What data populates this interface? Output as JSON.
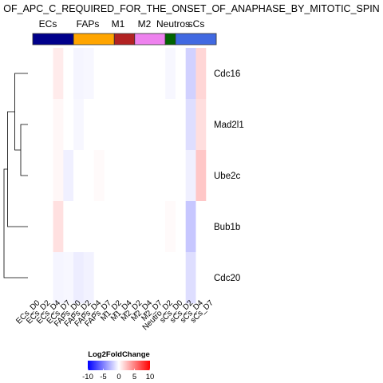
{
  "chart_data": {
    "type": "heatmap",
    "title": "OF_APC_C_REQUIRED_FOR_THE_ONSET_OF_ANAPHASE_BY_MITOTIC_SPIN",
    "rows": [
      "Cdc16",
      "Mad2l1",
      "Ube2c",
      "Bub1b",
      "Cdc20"
    ],
    "columns": [
      "ECs_D0",
      "ECs_D2",
      "ECs_D4",
      "ECs_D7",
      "FAPs_D0",
      "FAPs_D2",
      "FAPs_D4",
      "FAPs_D7",
      "M1_D2",
      "M1_D4",
      "M2_D2",
      "M2_D4",
      "M2_D7",
      "Neutro_D2",
      "sCs_D0",
      "sCs_D2",
      "sCs_D4",
      "sCs_D7"
    ],
    "column_groups": [
      {
        "name": "ECs",
        "color": "#00008b",
        "start": 0,
        "end": 3
      },
      {
        "name": "FAPs",
        "color": "#ffa500",
        "start": 4,
        "end": 7
      },
      {
        "name": "M1",
        "color": "#b22222",
        "start": 8,
        "end": 9
      },
      {
        "name": "M2",
        "color": "#ee82ee",
        "start": 10,
        "end": 12
      },
      {
        "name": "Neutros",
        "color": "#006400",
        "start": 13,
        "end": 13
      },
      {
        "name": "sCs",
        "color": "#4169e1",
        "start": 14,
        "end": 17
      }
    ],
    "values": [
      [
        0,
        0,
        0.8,
        0,
        -0.4,
        -0.3,
        0,
        0,
        0,
        0,
        0,
        0,
        0,
        -0.3,
        0,
        -1.8,
        1.6,
        0
      ],
      [
        0,
        0,
        0.3,
        0,
        -0.3,
        0,
        0,
        0,
        0,
        0,
        0,
        0,
        0,
        0,
        0,
        -1.3,
        1.3,
        0
      ],
      [
        0,
        0,
        0.3,
        -0.6,
        0,
        0,
        0.2,
        0,
        0,
        0,
        0,
        0,
        0,
        0,
        0,
        -0.6,
        2.2,
        0
      ],
      [
        0,
        0,
        1.2,
        0,
        0,
        0,
        0,
        0,
        0,
        0,
        0,
        0,
        0,
        0.2,
        0,
        -2.2,
        0,
        0
      ],
      [
        0,
        0,
        -0.4,
        -0.3,
        -0.7,
        -0.5,
        0,
        0,
        0,
        0,
        0,
        0,
        0,
        0,
        0,
        -1.3,
        0,
        0
      ]
    ],
    "row_dendrogram": {
      "leaf_order": [
        "Cdc16",
        "Mad2l1",
        "Ube2c",
        "Bub1b",
        "Cdc20"
      ],
      "merges": [
        {
          "left": "Mad2l1",
          "right": "Ube2c",
          "height": 0.3
        },
        {
          "left": "Cdc16",
          "right": "Mad2l1+Ube2c",
          "height": 0.55
        },
        {
          "left": "Cdc16+Mad2l1+Ube2c",
          "right": "Bub1b",
          "height": 0.85
        },
        {
          "left": "Cdc16+Mad2l1+Ube2c+Bub1b",
          "right": "Cdc20",
          "height": 1.0
        }
      ]
    },
    "legend": {
      "title": "Log2FoldChange",
      "ticks": [
        -10,
        -5,
        0,
        5,
        10
      ],
      "tick_labels": [
        "-10",
        "-5",
        "0",
        "5",
        "10"
      ],
      "range": [
        -10,
        10
      ],
      "colors": {
        "low": "#0000ff",
        "mid": "#ffffff",
        "high": "#ff0000"
      },
      "placement": "bottom"
    }
  }
}
